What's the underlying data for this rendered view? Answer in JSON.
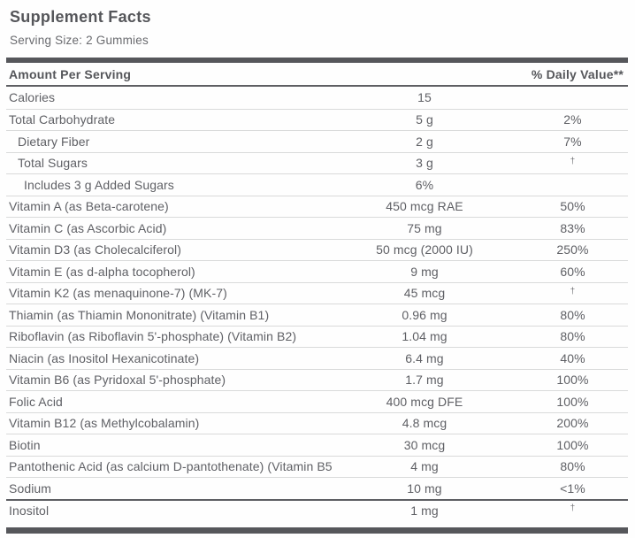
{
  "label": {
    "title": "Supplement Facts",
    "serving_size": "Serving Size: 2 Gummies",
    "header": {
      "amount_col": "Amount Per Serving",
      "dv_col": "% Daily Value**"
    },
    "rows": [
      {
        "name": "Calories",
        "amount": "15",
        "dv": "",
        "indent": 0
      },
      {
        "name": "Total Carbohydrate",
        "amount": "5 g",
        "dv": "2%",
        "indent": 0
      },
      {
        "name": "Dietary Fiber",
        "amount": "2 g",
        "dv": "7%",
        "indent": 1
      },
      {
        "name": "Total Sugars",
        "amount": "3 g",
        "dv": "†",
        "indent": 1
      },
      {
        "name": "Includes 3 g Added Sugars",
        "amount": "6%",
        "dv": "",
        "indent": 2
      },
      {
        "name": "Vitamin A (as Beta-carotene)",
        "amount": "450 mcg RAE",
        "dv": "50%",
        "indent": 0
      },
      {
        "name": "Vitamin C (as Ascorbic Acid)",
        "amount": "75 mg",
        "dv": "83%",
        "indent": 0
      },
      {
        "name": "Vitamin D3 (as Cholecalciferol)",
        "amount": "50 mcg (2000 IU)",
        "dv": "250%",
        "indent": 0
      },
      {
        "name": "Vitamin E (as d-alpha tocopherol)",
        "amount": "9 mg",
        "dv": "60%",
        "indent": 0
      },
      {
        "name": "Vitamin K2 (as menaquinone-7) (MK-7)",
        "amount": "45 mcg",
        "dv": "†",
        "indent": 0
      },
      {
        "name": "Thiamin (as Thiamin Mononitrate) (Vitamin B1)",
        "amount": "0.96 mg",
        "dv": "80%",
        "indent": 0
      },
      {
        "name": "Riboflavin (as Riboflavin 5'-phosphate) (Vitamin B2)",
        "amount": "1.04 mg",
        "dv": "80%",
        "indent": 0
      },
      {
        "name": "Niacin (as Inositol Hexanicotinate)",
        "amount": "6.4 mg",
        "dv": "40%",
        "indent": 0
      },
      {
        "name": "Vitamin B6 (as Pyridoxal 5'-phosphate)",
        "amount": "1.7 mg",
        "dv": "100%",
        "indent": 0
      },
      {
        "name": "Folic Acid",
        "amount": "400 mcg DFE",
        "dv": "100%",
        "indent": 0
      },
      {
        "name": "Vitamin B12 (as Methylcobalamin)",
        "amount": "4.8 mcg",
        "dv": "200%",
        "indent": 0
      },
      {
        "name": "Biotin",
        "amount": "30 mcg",
        "dv": "100%",
        "indent": 0
      },
      {
        "name": "Pantothenic Acid (as calcium D-pantothenate) (Vitamin B5)",
        "amount": "4 mg",
        "dv": "80%",
        "indent": 0
      },
      {
        "name": "Sodium",
        "amount": "10 mg",
        "dv": "<1%",
        "indent": 0
      },
      {
        "name": "Inositol",
        "amount": "1 mg",
        "dv": "†",
        "indent": 0,
        "strong_rule_above": true
      }
    ],
    "colors": {
      "bar": "#56575b",
      "text": "#5f6065",
      "heading": "#55565a",
      "divider": "#d9dada",
      "divider_strong": "#5e5f63"
    }
  }
}
